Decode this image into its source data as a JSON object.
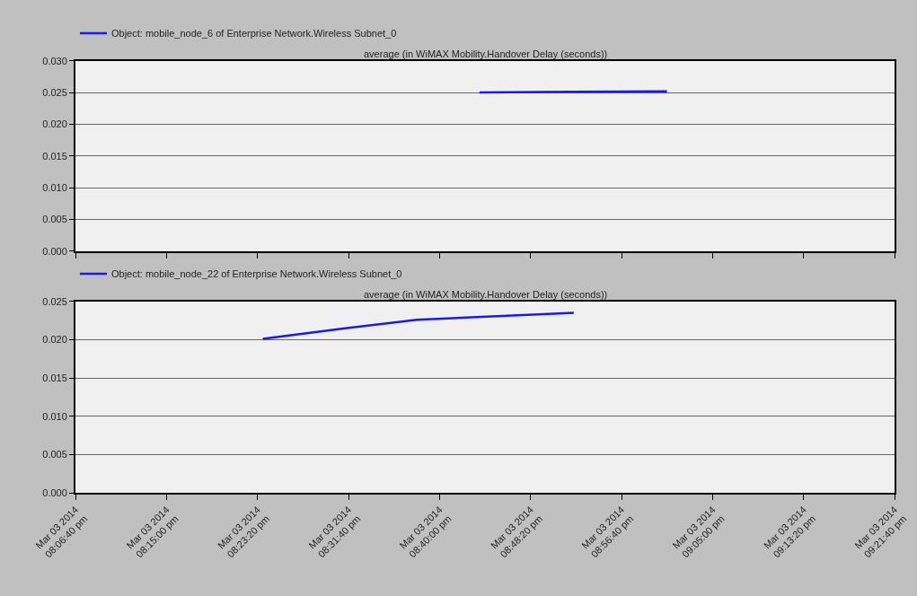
{
  "chart_data": [
    {
      "type": "line",
      "title": "average (in WiMAX Mobility.Handover Delay (seconds))",
      "legend": "top left",
      "grid": "y",
      "marker": "none",
      "line_style": "solid",
      "tick_labels": "y",
      "series": [
        {
          "name": "Object: mobile_node_6 of Enterprise Network.Wireless Subnet_0",
          "color": "#1a1aee",
          "x": [
            "2014-03-03T20:43:40",
            "2014-03-03T20:52:00",
            "2014-03-03T21:00:50"
          ],
          "values": [
            0.025,
            0.0251,
            0.0252
          ]
        }
      ],
      "xlim": [
        "2014-03-03T20:06:40",
        "2014-03-03T21:21:40"
      ],
      "xticks": [
        {
          "value": "2014-03-03T20:06:40",
          "label": null
        },
        {
          "value": "2014-03-03T20:15:00",
          "label": null
        },
        {
          "value": "2014-03-03T20:23:20",
          "label": null
        },
        {
          "value": "2014-03-03T20:31:40",
          "label": null
        },
        {
          "value": "2014-03-03T20:40:00",
          "label": null
        },
        {
          "value": "2014-03-03T20:48:20",
          "label": null
        },
        {
          "value": "2014-03-03T20:56:40",
          "label": null
        },
        {
          "value": "2014-03-03T21:05:00",
          "label": null
        },
        {
          "value": "2014-03-03T21:13:20",
          "label": null
        },
        {
          "value": "2014-03-03T21:21:40",
          "label": null
        }
      ],
      "ylim": [
        0,
        0.03
      ],
      "yticks": [
        {
          "value": 0,
          "label": "0.000"
        },
        {
          "value": 0.005,
          "label": "0.005"
        },
        {
          "value": 0.01,
          "label": "0.010"
        },
        {
          "value": 0.015,
          "label": "0.015"
        },
        {
          "value": 0.02,
          "label": "0.020"
        },
        {
          "value": 0.025,
          "label": "0.025"
        },
        {
          "value": 0.03,
          "label": "0.030"
        }
      ]
    },
    {
      "type": "line",
      "title": "average (in WiMAX Mobility.Handover Delay (seconds))",
      "legend": "top left",
      "grid": "y",
      "marker": "none",
      "line_style": "solid",
      "series": [
        {
          "name": "Object: mobile_node_22 of Enterprise Network.Wireless Subnet_0",
          "color": "#1a1aee",
          "x": [
            "2014-03-03T20:23:49",
            "2014-03-03T20:31:22",
            "2014-03-03T20:37:56",
            "2014-03-03T20:45:44",
            "2014-03-03T20:52:18"
          ],
          "values": [
            0.0201,
            0.0215,
            0.0226,
            0.0231,
            0.0235
          ]
        }
      ],
      "xlim": [
        "2014-03-03T20:06:40",
        "2014-03-03T21:21:40"
      ],
      "xticks": [
        {
          "value": "2014-03-03T20:06:40",
          "label": "Mar 03 2014\n08:06:40 pm"
        },
        {
          "value": "2014-03-03T20:15:00",
          "label": "Mar 03 2014\n08:15:00 pm"
        },
        {
          "value": "2014-03-03T20:23:20",
          "label": "Mar 03 2014\n08:23:20 pm"
        },
        {
          "value": "2014-03-03T20:31:40",
          "label": "Mar 03 2014\n08:31:40 pm"
        },
        {
          "value": "2014-03-03T20:40:00",
          "label": "Mar 03 2014\n08:40:00 pm"
        },
        {
          "value": "2014-03-03T20:48:20",
          "label": "Mar 03 2014\n08:48:20 pm"
        },
        {
          "value": "2014-03-03T20:56:40",
          "label": "Mar 03 2014\n08:56:40 pm"
        },
        {
          "value": "2014-03-03T21:05:00",
          "label": "Mar 03 2014\n09:05:00 pm"
        },
        {
          "value": "2014-03-03T21:13:20",
          "label": "Mar 03 2014\n09:13:20 pm"
        },
        {
          "value": "2014-03-03T21:21:40",
          "label": "Mar 03 2014\n09:21:40 pm"
        }
      ],
      "ylim": [
        0,
        0.025
      ],
      "yticks": [
        {
          "value": 0,
          "label": "0.000"
        },
        {
          "value": 0.005,
          "label": "0.005"
        },
        {
          "value": 0.01,
          "label": "0.010"
        },
        {
          "value": 0.015,
          "label": "0.015"
        },
        {
          "value": 0.02,
          "label": "0.020"
        },
        {
          "value": 0.025,
          "label": "0.025"
        }
      ]
    }
  ]
}
